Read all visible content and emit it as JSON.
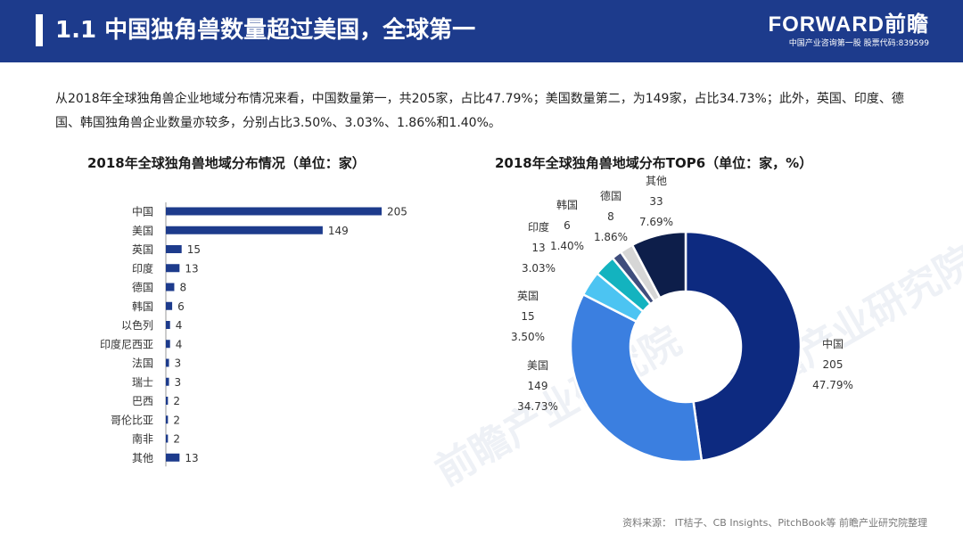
{
  "header": {
    "title": "1.1 中国独角兽数量超过美国，全球第一",
    "brand": "FORWARD前瞻",
    "brand_sub": "中国产业咨询第一股  股票代码:839599"
  },
  "intro": "从2018年全球独角兽企业地域分布情况来看，中国数量第一，共205家，占比47.79%；美国数量第二，为149家，占比34.73%；此外，英国、印度、德国、韩国独角兽企业数量亦较多，分别占比3.50%、3.03%、1.86%和1.40%。",
  "watermark": "前瞻产业研究院",
  "source": "资料来源：  IT桔子、CB Insights、PitchBook等  前瞻产业研究院整理",
  "colors": {
    "bar": "#1d3b8c",
    "header": "#1d3b8c"
  },
  "chart_data": [
    {
      "type": "bar",
      "orientation": "horizontal",
      "title": "2018年全球独角兽地域分布情况（单位：家）",
      "categories": [
        "中国",
        "美国",
        "英国",
        "印度",
        "德国",
        "韩国",
        "以色列",
        "印度尼西亚",
        "法国",
        "瑞士",
        "巴西",
        "哥伦比亚",
        "南非",
        "其他"
      ],
      "values": [
        205,
        149,
        15,
        13,
        8,
        6,
        4,
        4,
        3,
        3,
        2,
        2,
        2,
        13
      ],
      "xlim": [
        0,
        205
      ],
      "grid": false
    },
    {
      "type": "pie",
      "style": "donut",
      "title": "2018年全球独角兽地域分布TOP6（单位：家，%）",
      "slices": [
        {
          "label": "中国",
          "value": 205,
          "percent": "47.79%",
          "color": "#0d2a80"
        },
        {
          "label": "美国",
          "value": 149,
          "percent": "34.73%",
          "color": "#3b7fe0"
        },
        {
          "label": "英国",
          "value": 15,
          "percent": "3.50%",
          "color": "#4cc4f2"
        },
        {
          "label": "印度",
          "value": 13,
          "percent": "3.03%",
          "color": "#13b3bf"
        },
        {
          "label": "韩国",
          "value": 6,
          "percent": "1.40%",
          "color": "#3f4d7c"
        },
        {
          "label": "德国",
          "value": 8,
          "percent": "1.86%",
          "color": "#d6d6d6"
        },
        {
          "label": "其他",
          "value": 33,
          "percent": "7.69%",
          "color": "#0d1e4a"
        }
      ]
    }
  ]
}
